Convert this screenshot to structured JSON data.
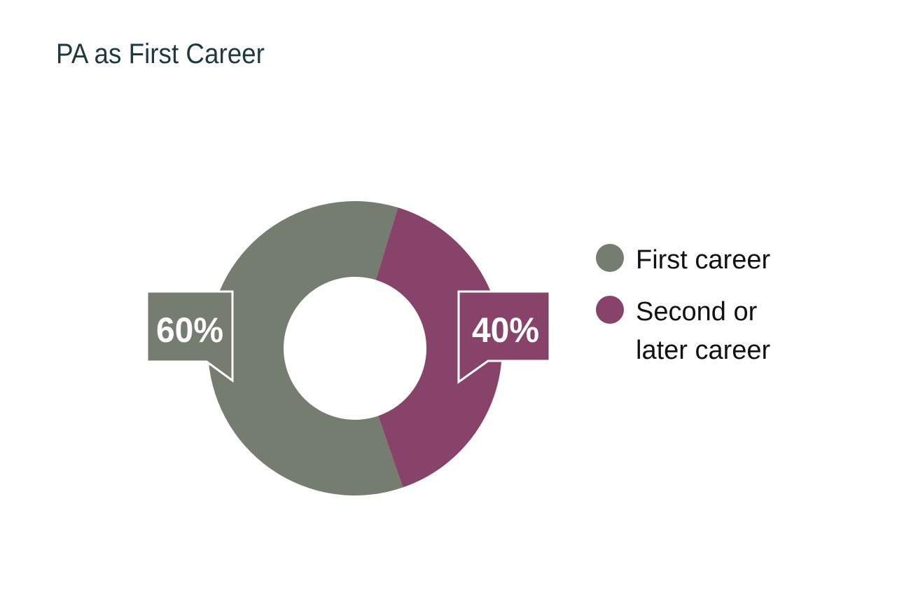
{
  "chart_data": {
    "type": "pie",
    "subtype": "donut",
    "title": "PA as First Career",
    "categories": [
      "First career",
      "Second or later career"
    ],
    "values": [
      60,
      40
    ],
    "data_labels": [
      "60%",
      "40%"
    ],
    "legend_lines": [
      [
        "First career"
      ],
      [
        "Second or",
        "later career"
      ]
    ],
    "colors": [
      "#757c70",
      "#88436a"
    ],
    "legend_position": "right"
  }
}
